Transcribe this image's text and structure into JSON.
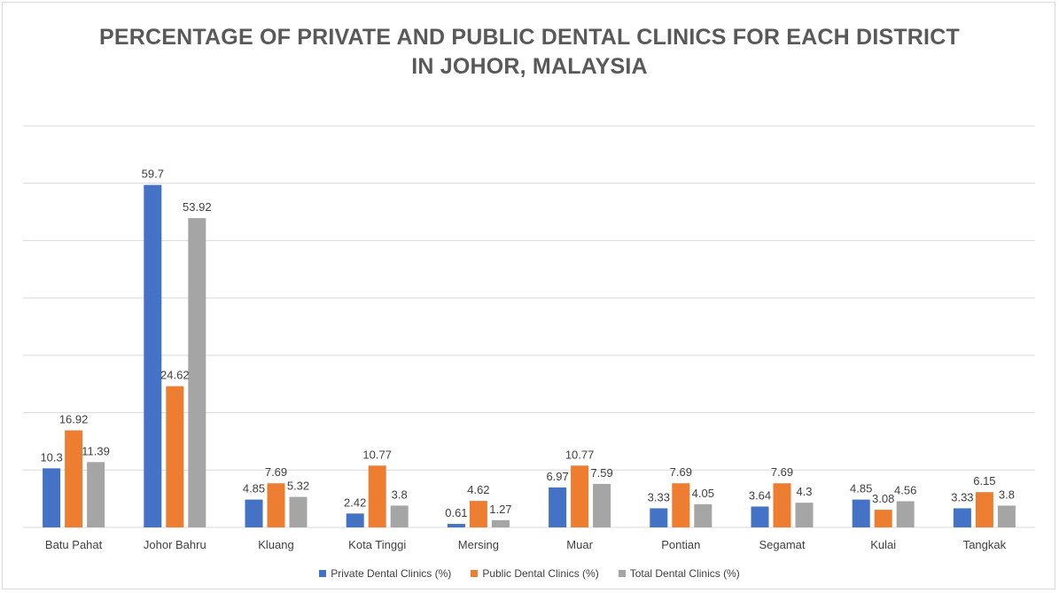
{
  "chart_data": {
    "type": "bar",
    "title": "PERCENTAGE OF PRIVATE AND PUBLIC DENTAL CLINICS FOR EACH DISTRICT IN JOHOR, MALAYSIA",
    "title_lines": [
      "PERCENTAGE OF PRIVATE AND PUBLIC DENTAL CLINICS FOR EACH DISTRICT",
      "IN JOHOR, MALAYSIA"
    ],
    "categories": [
      "Batu Pahat",
      "Johor Bahru",
      "Kluang",
      "Kota Tinggi",
      "Mersing",
      "Muar",
      "Pontian",
      "Segamat",
      "Kulai",
      "Tangkak"
    ],
    "series": [
      {
        "name": "Private Dental Clinics (%)",
        "color": "#4472c4",
        "values": [
          10.3,
          59.7,
          4.85,
          2.42,
          0.61,
          6.97,
          3.33,
          3.64,
          4.85,
          3.33
        ]
      },
      {
        "name": "Public Dental Clinics (%)",
        "color": "#ed7d31",
        "values": [
          16.92,
          24.62,
          7.69,
          10.77,
          4.62,
          10.77,
          7.69,
          7.69,
          3.08,
          6.15
        ]
      },
      {
        "name": "Total Dental Clinics (%)",
        "color": "#a5a5a5",
        "values": [
          11.39,
          53.92,
          5.32,
          3.8,
          1.27,
          7.59,
          4.05,
          4.3,
          4.56,
          3.8
        ]
      }
    ],
    "ylim": [
      0,
      70
    ],
    "grid": true,
    "legend_position": "bottom"
  }
}
